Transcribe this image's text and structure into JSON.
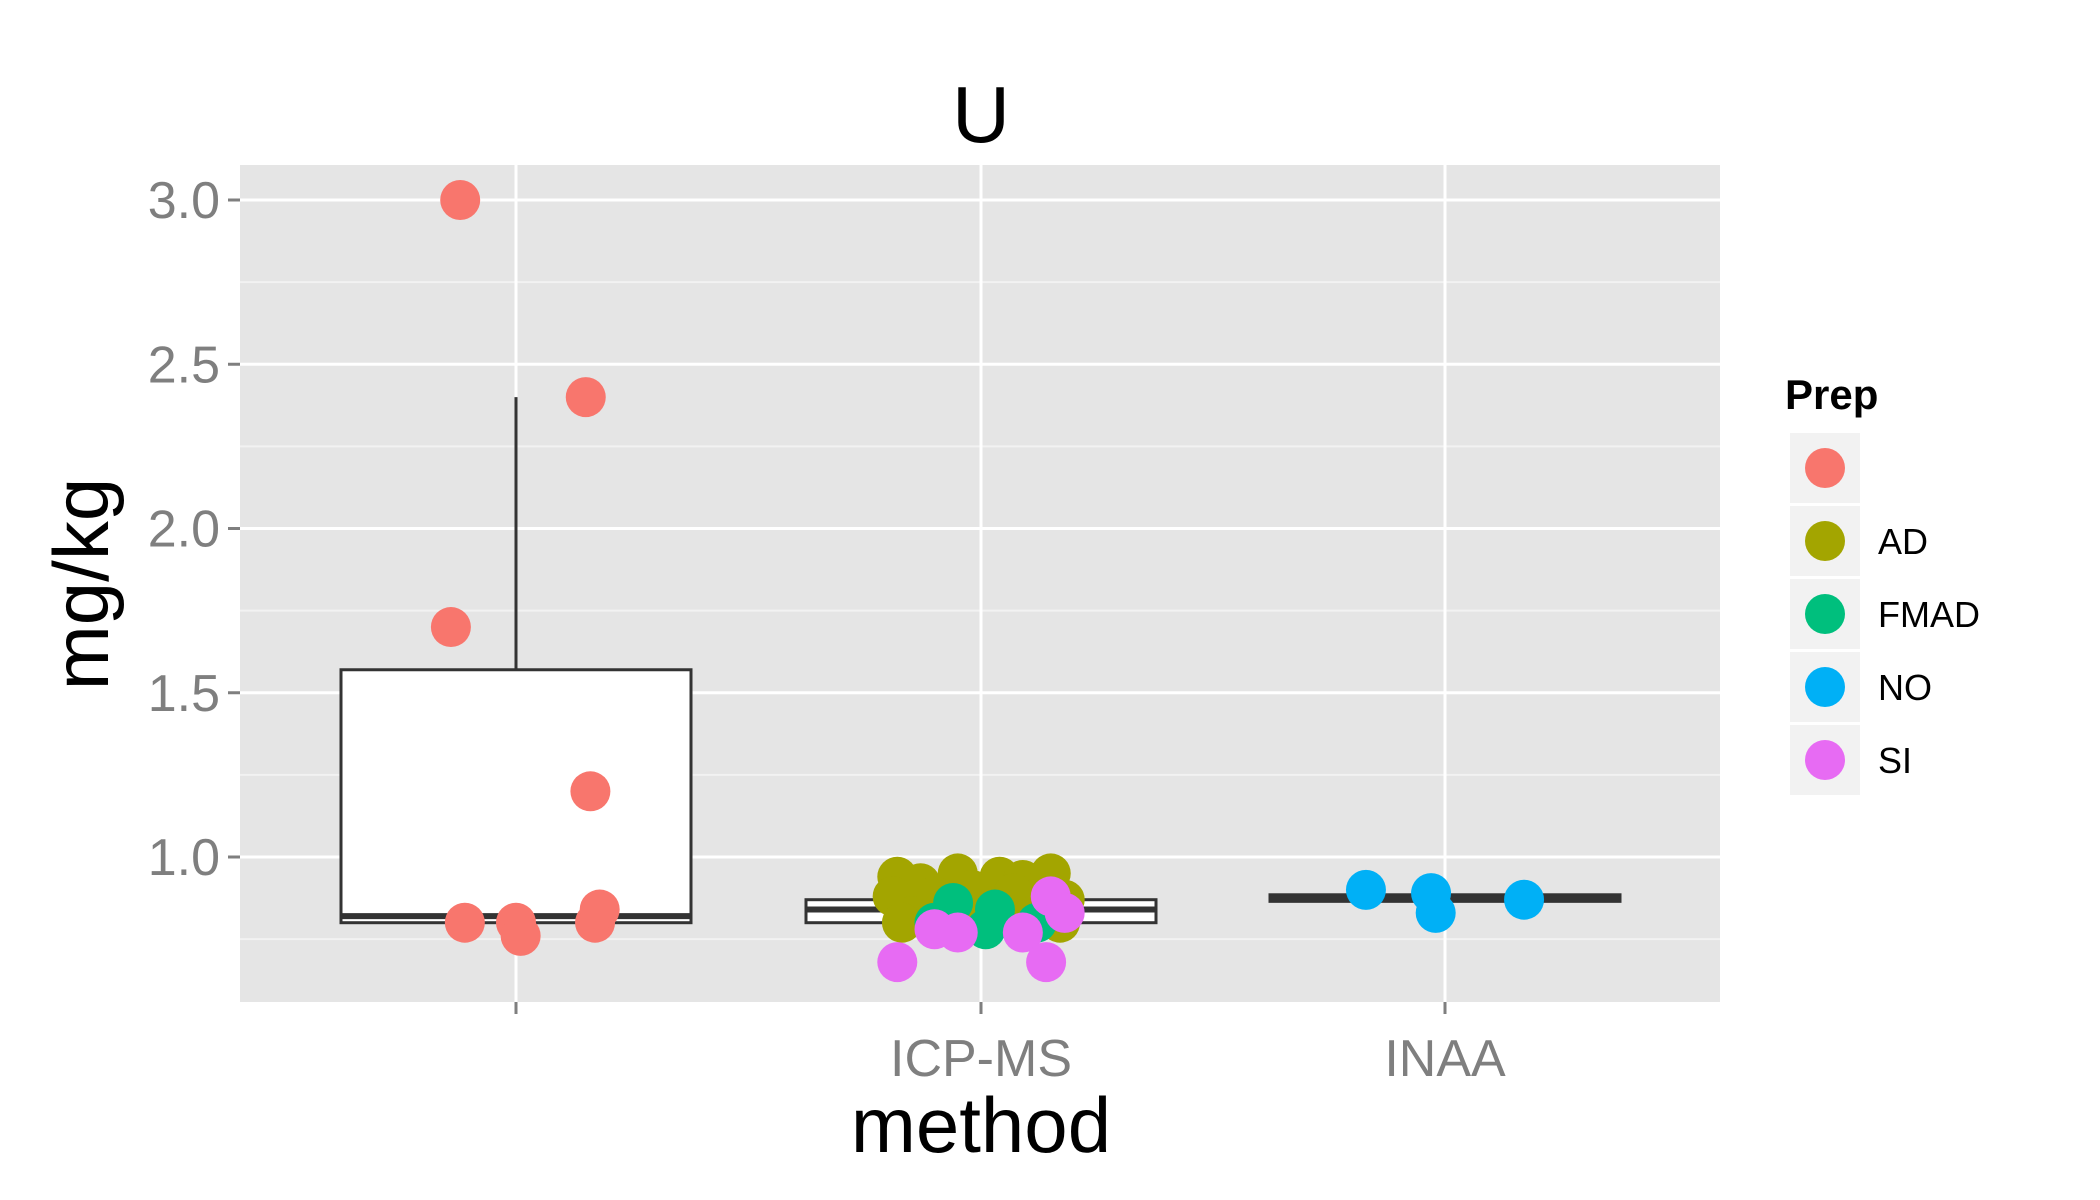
{
  "chart_data": {
    "type": "boxplot",
    "title": "U",
    "xlabel": "method",
    "ylabel": "mg/kg",
    "categories": [
      "",
      "ICP-MS",
      "INAA"
    ],
    "ylim": [
      0.6,
      3.1
    ],
    "yticks": [
      1.0,
      1.5,
      2.0,
      2.5,
      3.0
    ],
    "ytick_labels": [
      "1.0",
      "1.5",
      "2.0",
      "2.5",
      "3.0"
    ],
    "grid": true,
    "legend_position": "right",
    "legend": {
      "title": "Prep",
      "entries": [
        {
          "label": "",
          "color": "#F8766D"
        },
        {
          "label": "AD",
          "color": "#A3A500"
        },
        {
          "label": "FMAD",
          "color": "#00BF7D"
        },
        {
          "label": "NO",
          "color": "#00B0F6"
        },
        {
          "label": "SI",
          "color": "#E76BF3"
        }
      ]
    },
    "boxes": [
      {
        "category": "",
        "q1": 0.8,
        "median": 0.82,
        "q3": 1.57,
        "whisker_low": 0.8,
        "whisker_high": 2.4
      },
      {
        "category": "ICP-MS",
        "q1": 0.8,
        "median": 0.84,
        "q3": 0.87,
        "whisker_low": 0.8,
        "whisker_high": 0.93
      },
      {
        "category": "INAA",
        "q1": 0.865,
        "median": 0.875,
        "q3": 0.885,
        "whisker_low": 0.865,
        "whisker_high": 0.885
      }
    ],
    "points": [
      {
        "category": "",
        "prep": "",
        "jitter": -0.12,
        "y": 3.0
      },
      {
        "category": "",
        "prep": "",
        "jitter": 0.15,
        "y": 2.4
      },
      {
        "category": "",
        "prep": "",
        "jitter": -0.14,
        "y": 1.7
      },
      {
        "category": "",
        "prep": "",
        "jitter": 0.16,
        "y": 1.2
      },
      {
        "category": "",
        "prep": "",
        "jitter": -0.11,
        "y": 0.8
      },
      {
        "category": "",
        "prep": "",
        "jitter": 0.0,
        "y": 0.8
      },
      {
        "category": "",
        "prep": "",
        "jitter": 0.01,
        "y": 0.76
      },
      {
        "category": "",
        "prep": "",
        "jitter": 0.17,
        "y": 0.8
      },
      {
        "category": "",
        "prep": "",
        "jitter": 0.18,
        "y": 0.84
      },
      {
        "category": "ICP-MS",
        "prep": "AD",
        "jitter": -0.18,
        "y": 0.94
      },
      {
        "category": "ICP-MS",
        "prep": "AD",
        "jitter": -0.13,
        "y": 0.92
      },
      {
        "category": "ICP-MS",
        "prep": "AD",
        "jitter": -0.05,
        "y": 0.95
      },
      {
        "category": "ICP-MS",
        "prep": "AD",
        "jitter": 0.04,
        "y": 0.94
      },
      {
        "category": "ICP-MS",
        "prep": "AD",
        "jitter": 0.09,
        "y": 0.93
      },
      {
        "category": "ICP-MS",
        "prep": "AD",
        "jitter": 0.15,
        "y": 0.95
      },
      {
        "category": "ICP-MS",
        "prep": "AD",
        "jitter": -0.19,
        "y": 0.88
      },
      {
        "category": "ICP-MS",
        "prep": "AD",
        "jitter": -0.1,
        "y": 0.88
      },
      {
        "category": "ICP-MS",
        "prep": "AD",
        "jitter": -0.02,
        "y": 0.9
      },
      {
        "category": "ICP-MS",
        "prep": "AD",
        "jitter": 0.07,
        "y": 0.89
      },
      {
        "category": "ICP-MS",
        "prep": "AD",
        "jitter": 0.18,
        "y": 0.87
      },
      {
        "category": "ICP-MS",
        "prep": "AD",
        "jitter": -0.15,
        "y": 0.82
      },
      {
        "category": "ICP-MS",
        "prep": "AD",
        "jitter": -0.02,
        "y": 0.83
      },
      {
        "category": "ICP-MS",
        "prep": "AD",
        "jitter": 0.11,
        "y": 0.82
      },
      {
        "category": "ICP-MS",
        "prep": "AD",
        "jitter": 0.17,
        "y": 0.8
      },
      {
        "category": "ICP-MS",
        "prep": "AD",
        "jitter": -0.17,
        "y": 0.8
      },
      {
        "category": "ICP-MS",
        "prep": "FMAD",
        "jitter": -0.1,
        "y": 0.8
      },
      {
        "category": "ICP-MS",
        "prep": "FMAD",
        "jitter": -0.06,
        "y": 0.86
      },
      {
        "category": "ICP-MS",
        "prep": "FMAD",
        "jitter": 0.01,
        "y": 0.78
      },
      {
        "category": "ICP-MS",
        "prep": "FMAD",
        "jitter": 0.03,
        "y": 0.84
      },
      {
        "category": "ICP-MS",
        "prep": "FMAD",
        "jitter": 0.12,
        "y": 0.8
      },
      {
        "category": "ICP-MS",
        "prep": "SI",
        "jitter": -0.18,
        "y": 0.68
      },
      {
        "category": "ICP-MS",
        "prep": "SI",
        "jitter": -0.1,
        "y": 0.78
      },
      {
        "category": "ICP-MS",
        "prep": "SI",
        "jitter": -0.05,
        "y": 0.77
      },
      {
        "category": "ICP-MS",
        "prep": "SI",
        "jitter": 0.09,
        "y": 0.77
      },
      {
        "category": "ICP-MS",
        "prep": "SI",
        "jitter": 0.15,
        "y": 0.88
      },
      {
        "category": "ICP-MS",
        "prep": "SI",
        "jitter": 0.18,
        "y": 0.83
      },
      {
        "category": "ICP-MS",
        "prep": "SI",
        "jitter": 0.14,
        "y": 0.68
      },
      {
        "category": "INAA",
        "prep": "NO",
        "jitter": -0.17,
        "y": 0.9
      },
      {
        "category": "INAA",
        "prep": "NO",
        "jitter": -0.03,
        "y": 0.89
      },
      {
        "category": "INAA",
        "prep": "NO",
        "jitter": -0.02,
        "y": 0.83
      },
      {
        "category": "INAA",
        "prep": "NO",
        "jitter": 0.17,
        "y": 0.87
      }
    ]
  }
}
